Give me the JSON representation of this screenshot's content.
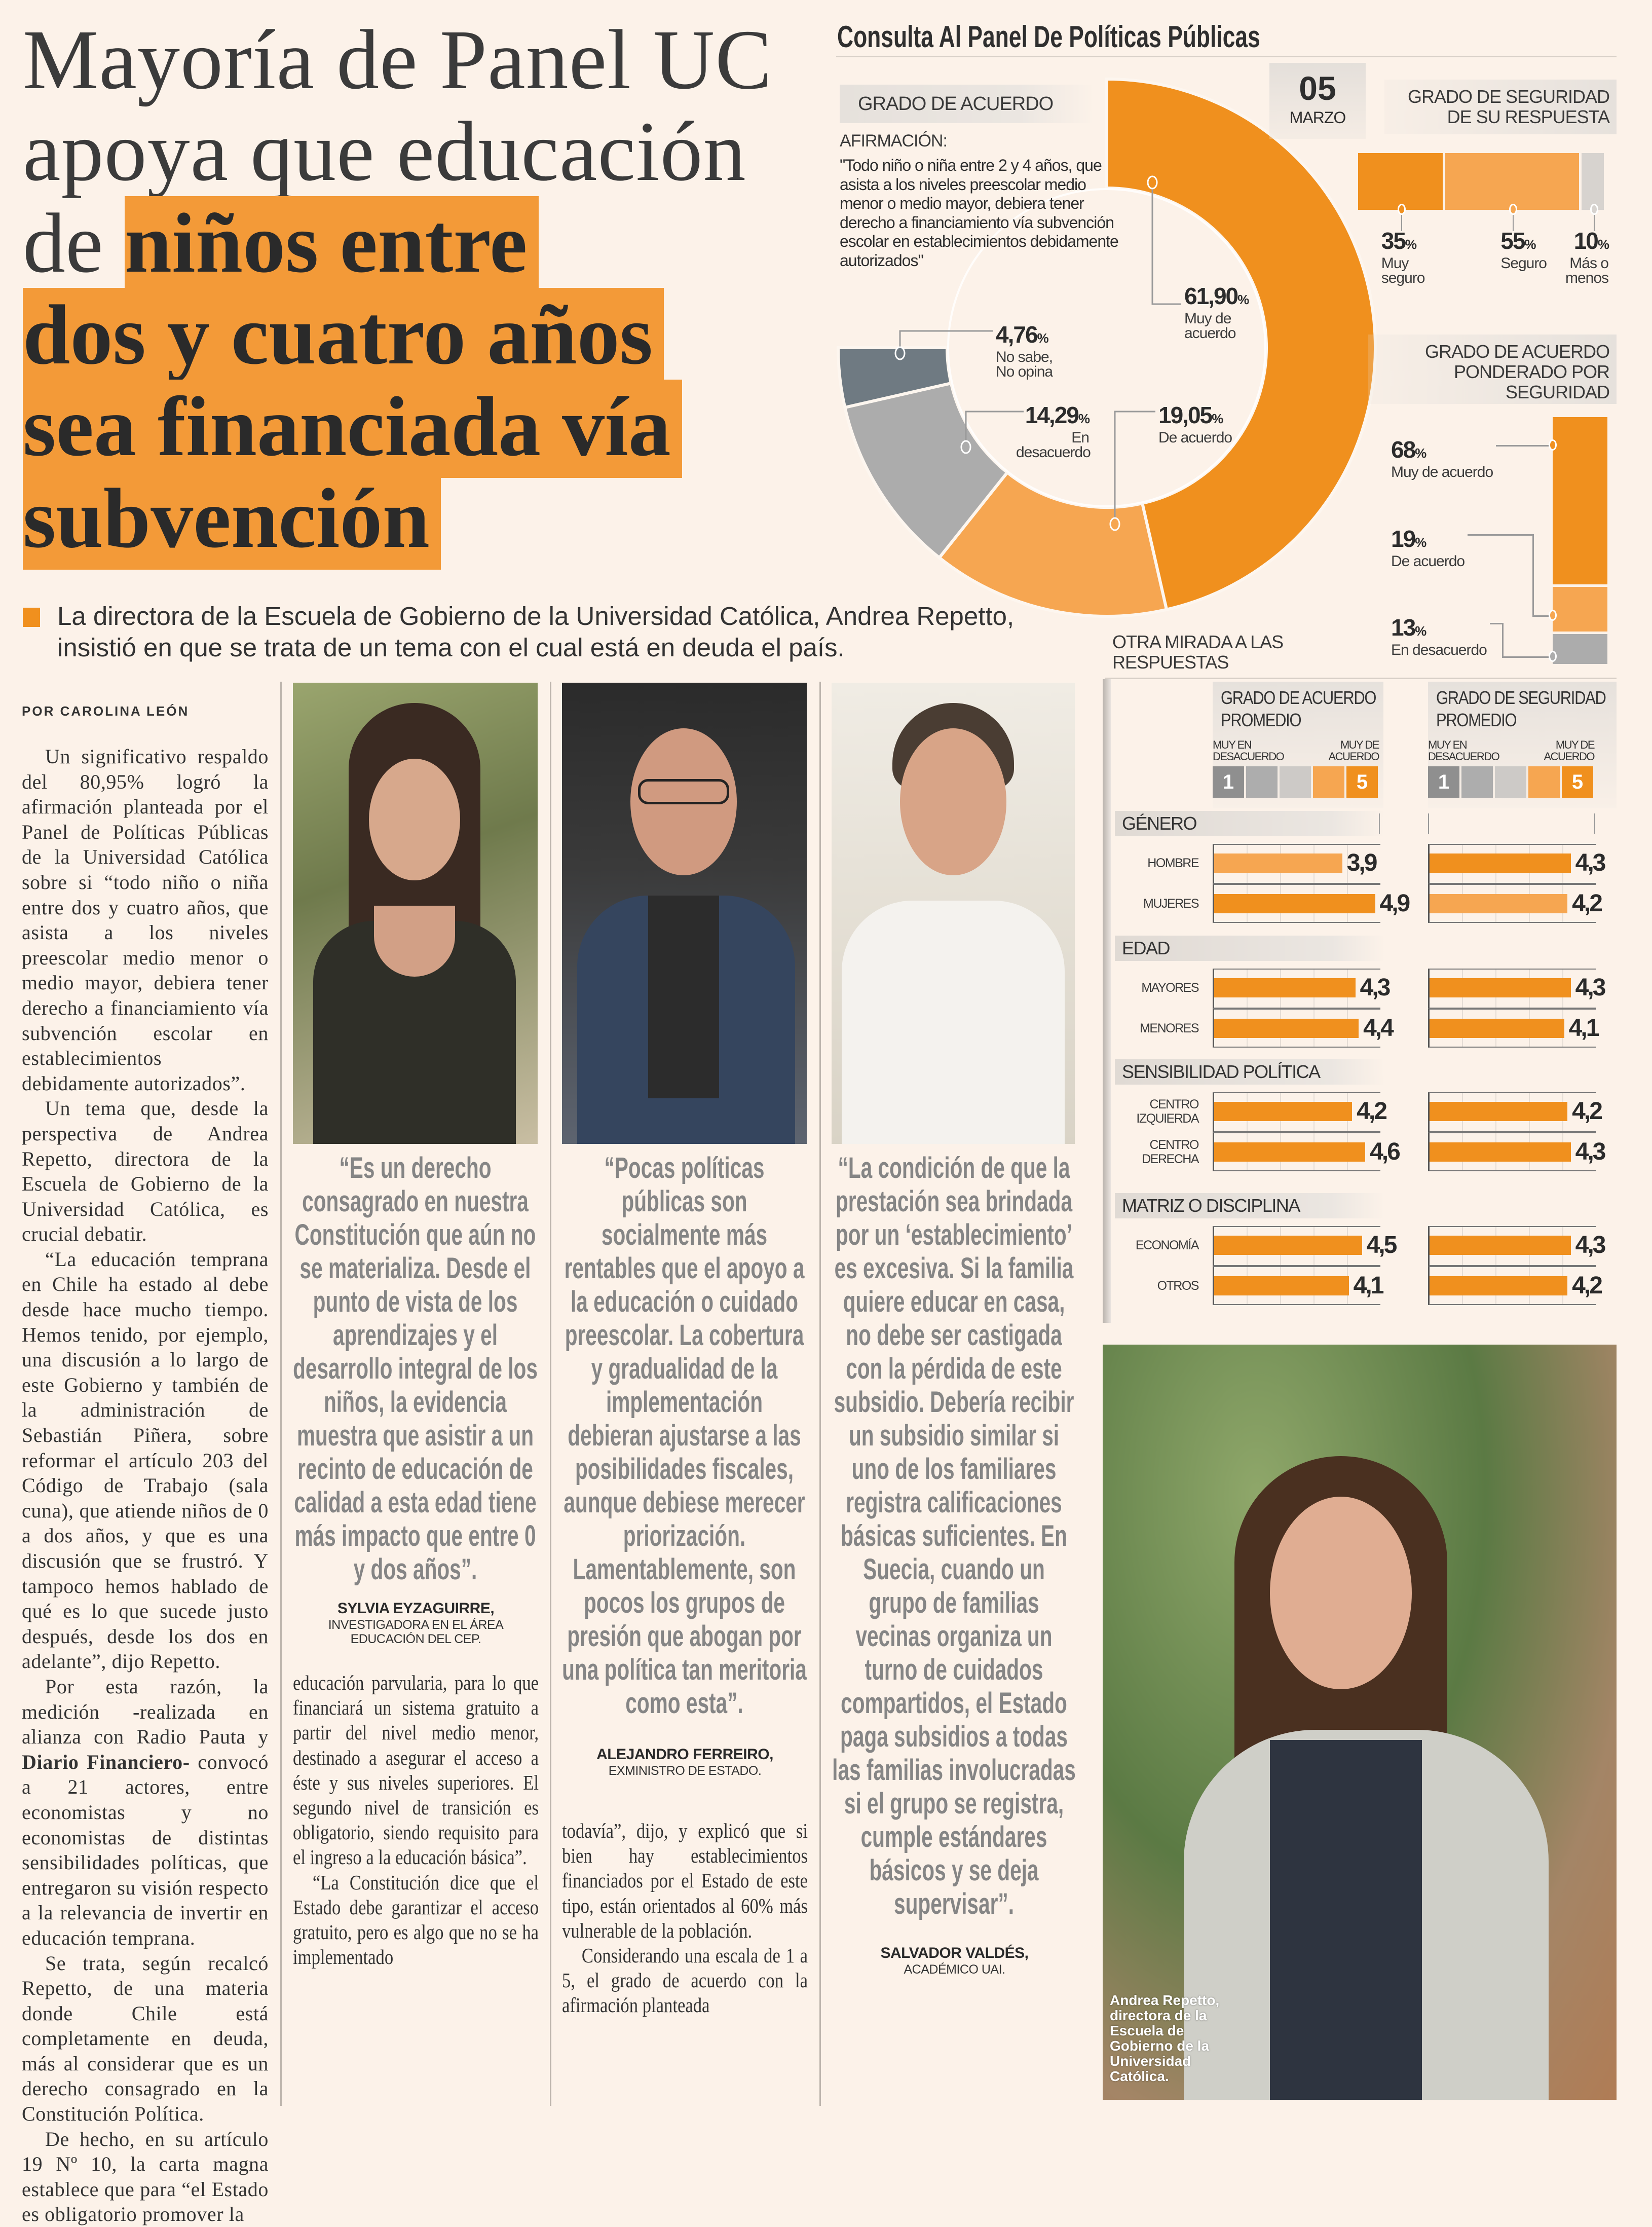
{
  "headline": {
    "line1": "Mayoría de Panel UC",
    "line2": "apoya que educación",
    "line3_plain": "de ",
    "line3_mark": "niños entre",
    "line4": "dos y cuatro años",
    "line5": "sea financiada vía",
    "line6": "subvención"
  },
  "subhead": "La directora de la Escuela de Gobierno de la Universidad Católica, Andrea Repetto, insistió en que se trata de un tema con el cual está en deuda el país.",
  "byline": "POR CAROLINA LEÓN",
  "column1": {
    "p1": "Un significativo respaldo del 80,95% logró la afirmación planteada por el Panel de Políticas Públicas de la Universidad Católica sobre si “todo niño o niña entre dos y cuatro años, que asista a los niveles preescolar medio menor o medio mayor, debiera tener derecho a financiamiento vía subvención escolar en establecimientos debidamente autorizados”.",
    "p2": "Un tema que, desde la perspectiva de Andrea Repetto, directora de la Escuela de Gobierno de la Universidad Católica, es crucial debatir.",
    "p3": "“La educación temprana en Chile ha estado al debe desde hace mucho tiempo. Hemos tenido, por ejemplo, una discusión a lo largo de este Gobierno y también de la administración de Sebastián Piñera, sobre reformar el artículo 203 del Código de Trabajo (sala cuna), que atiende niños de 0 a dos años, y que es una discusión que se frustró. Y tampoco hemos hablado de qué es lo que sucede justo después, desde los dos en adelante”, dijo Repetto.",
    "p4a": "Por esta razón, la medición -realizada en alianza con Radio Pauta y ",
    "p4b": "Diario Financiero",
    "p4c": "- convocó a 21 actores, entre economistas y no economistas de distintas sensibilidades políticas, que entregaron su visión respecto a la relevancia de invertir en educación temprana.",
    "p5": "Se trata, según recalcó Repetto, de una materia donde Chile está completamente en deuda, más al considerar que es un derecho consagrado en la Constitución Política.",
    "p6": "De hecho, en su artículo 19 Nº 10, la carta magna establece que para “el Estado es obligatorio promover la"
  },
  "column2": {
    "p1": "educación parvularia, para lo que financiará un sistema gratuito a partir del nivel medio menor, destinado a asegurar el acceso a éste y sus niveles superiores. El segundo nivel de transición es obligatorio, siendo requisito para el ingreso a la educación básica”.",
    "p2": "“La Constitución dice que el Estado debe garantizar el acceso gratuito, pero es algo que no se ha implementado"
  },
  "column3": {
    "p1": "todavía”, dijo, y explicó que si bien hay establecimientos financiados por el Estado de este tipo, están orientados al 60% más vulnerable de la población.",
    "p2": "Considerando una escala de 1 a 5, el grado de acuerdo con la afirmación planteada"
  },
  "quotes": [
    {
      "text": "“Es un derecho consagrado en nuestra Constitución que aún no se materializa. Desde el punto de vista de los aprendizajes y el desarrollo integral de los niños, la evidencia muestra que asistir a un recinto de educación de calidad a esta edad tiene más impacto que entre 0 y dos años”.",
      "name": "SYLVIA EYZAGUIRRE,",
      "role": "INVESTIGADORA EN EL ÁREA EDUCACIÓN DEL CEP."
    },
    {
      "text": "“Pocas políticas públicas son socialmente más rentables que el apoyo a la educación o cuidado preescolar. La cobertura y gradualidad de la implementación debieran ajustarse a las posibilidades fiscales, aunque debiese merecer priorización. Lamentablemente, son pocos los grupos de presión que abogan por una política tan meritoria como esta”.",
      "name": "ALEJANDRO FERREIRO,",
      "role": "EXMINISTRO DE ESTADO."
    },
    {
      "text": "“La condición de que la prestación sea brindada por un ‘establecimiento’ es excesiva. Si la familia quiere educar en casa, no debe ser castigada con la pérdida de este subsidio. Debería recibir un subsidio similar si uno de los familiares registra calificaciones básicas suficientes. En Suecia, cuando un grupo de familias vecinas organiza un turno de cuidados compartidos, el Estado paga subsidios a todas las familias involucradas si el grupo se registra, cumple estándares básicos y se deja supervisar”.",
      "name": "SALVADOR VALDÉS,",
      "role": "ACADÉMICO UAI."
    }
  ],
  "photo_caption": "Andrea Repetto, directora de la Escuela de Gobierno de la Universidad Católica.",
  "colors": {
    "orange": "#f0901e",
    "light_orange": "#f6a651",
    "gray": "#acacac",
    "dark_gray": "#6f7a82",
    "highlight": "#f39a38",
    "background": "#fcf2e9"
  },
  "infographic": {
    "title": "Consulta Al Panel De Políticas Públicas",
    "date_day": "05",
    "date_month": "MARZO",
    "agreement_title": "GRADO DE ACUERDO",
    "statement_label": "AFIRMACIÓN:",
    "statement": "\"Todo niño o niña entre 2 y 4 años, que asista a los niveles preescolar medio menor o medio mayor, debiera tener derecho a financiamiento vía subvención escolar en establecimientos debidamente autorizados\"",
    "certainty_title": "GRADO DE SEGURIDAD DE SU RESPUESTA",
    "weighted_title": "GRADO DE ACUERDO PONDERADO POR SEGURIDAD",
    "other_look": "OTRA MIRADA A LAS RESPUESTAS"
  },
  "chart_data": [
    {
      "type": "pie",
      "title": "GRADO DE ACUERDO",
      "donut": true,
      "arc_degrees": 270,
      "slices": [
        {
          "label": "Muy de acuerdo",
          "value": 61.9,
          "display": "61,90",
          "color": "#f0901e"
        },
        {
          "label": "De acuerdo",
          "value": 19.05,
          "display": "19,05",
          "color": "#f6a651"
        },
        {
          "label": "En desacuerdo",
          "value": 14.29,
          "display": "14,29",
          "color": "#acacac"
        },
        {
          "label": "No sabe, No opina",
          "value": 4.76,
          "display": "4,76",
          "color": "#6f7a82"
        }
      ]
    },
    {
      "type": "bar",
      "stacked": true,
      "orientation": "horizontal",
      "title": "GRADO DE SEGURIDAD DE SU RESPUESTA",
      "segments": [
        {
          "label": "Muy seguro",
          "value": 35,
          "color": "#f0901e"
        },
        {
          "label": "Seguro",
          "value": 55,
          "color": "#f6a651"
        },
        {
          "label": "Más o menos",
          "value": 10,
          "color": "#d7d3cf"
        }
      ]
    },
    {
      "type": "bar",
      "stacked": true,
      "orientation": "vertical",
      "title": "GRADO DE ACUERDO PONDERADO POR SEGURIDAD",
      "segments": [
        {
          "label": "Muy de acuerdo",
          "value": 68,
          "color": "#f0901e"
        },
        {
          "label": "De acuerdo",
          "value": 19,
          "color": "#f6a651"
        },
        {
          "label": "En desacuerdo",
          "value": 13,
          "color": "#acacac"
        }
      ]
    },
    {
      "type": "bar",
      "orientation": "horizontal",
      "scale": [
        1,
        5
      ],
      "xlim": [
        0,
        5
      ],
      "scale_low_label": "MUY EN DESACUERDO",
      "scale_high_label": "MUY DE ACUERDO",
      "scale_low": "1",
      "scale_high": "5",
      "scale_colors": [
        "#8f8f8f",
        "#adadad",
        "#cdcac7",
        "#f6a651",
        "#f0901e"
      ],
      "panels": [
        "GRADO DE ACUERDO PROMEDIO",
        "GRADO DE SEGURIDAD PROMEDIO"
      ],
      "groups": [
        {
          "name": "GÉNERO",
          "rows": [
            {
              "label": "HOMBRE",
              "values": [
                3.9,
                4.3
              ],
              "display": [
                "3,9",
                "4,3"
              ],
              "shade": [
                "light",
                "dark"
              ]
            },
            {
              "label": "MUJERES",
              "values": [
                4.9,
                4.2
              ],
              "display": [
                "4,9",
                "4,2"
              ],
              "shade": [
                "dark",
                "light"
              ]
            }
          ]
        },
        {
          "name": "EDAD",
          "rows": [
            {
              "label": "MAYORES",
              "values": [
                4.3,
                4.3
              ],
              "display": [
                "4,3",
                "4,3"
              ],
              "shade": [
                "dark",
                "dark"
              ]
            },
            {
              "label": "MENORES",
              "values": [
                4.4,
                4.1
              ],
              "display": [
                "4,4",
                "4,1"
              ],
              "shade": [
                "dark",
                "dark"
              ]
            }
          ]
        },
        {
          "name": "SENSIBILIDAD POLÍTICA",
          "rows": [
            {
              "label": "CENTRO IZQUIERDA",
              "values": [
                4.2,
                4.2
              ],
              "display": [
                "4,2",
                "4,2"
              ],
              "shade": [
                "dark",
                "dark"
              ]
            },
            {
              "label": "CENTRO DERECHA",
              "values": [
                4.6,
                4.3
              ],
              "display": [
                "4,6",
                "4,3"
              ],
              "shade": [
                "dark",
                "dark"
              ]
            }
          ]
        },
        {
          "name": "MATRIZ O DISCIPLINA",
          "rows": [
            {
              "label": "ECONOMÍA",
              "values": [
                4.5,
                4.3
              ],
              "display": [
                "4,5",
                "4,3"
              ],
              "shade": [
                "dark",
                "dark"
              ]
            },
            {
              "label": "OTROS",
              "values": [
                4.1,
                4.2
              ],
              "display": [
                "4,1",
                "4,2"
              ],
              "shade": [
                "dark",
                "dark"
              ]
            }
          ]
        }
      ]
    }
  ]
}
